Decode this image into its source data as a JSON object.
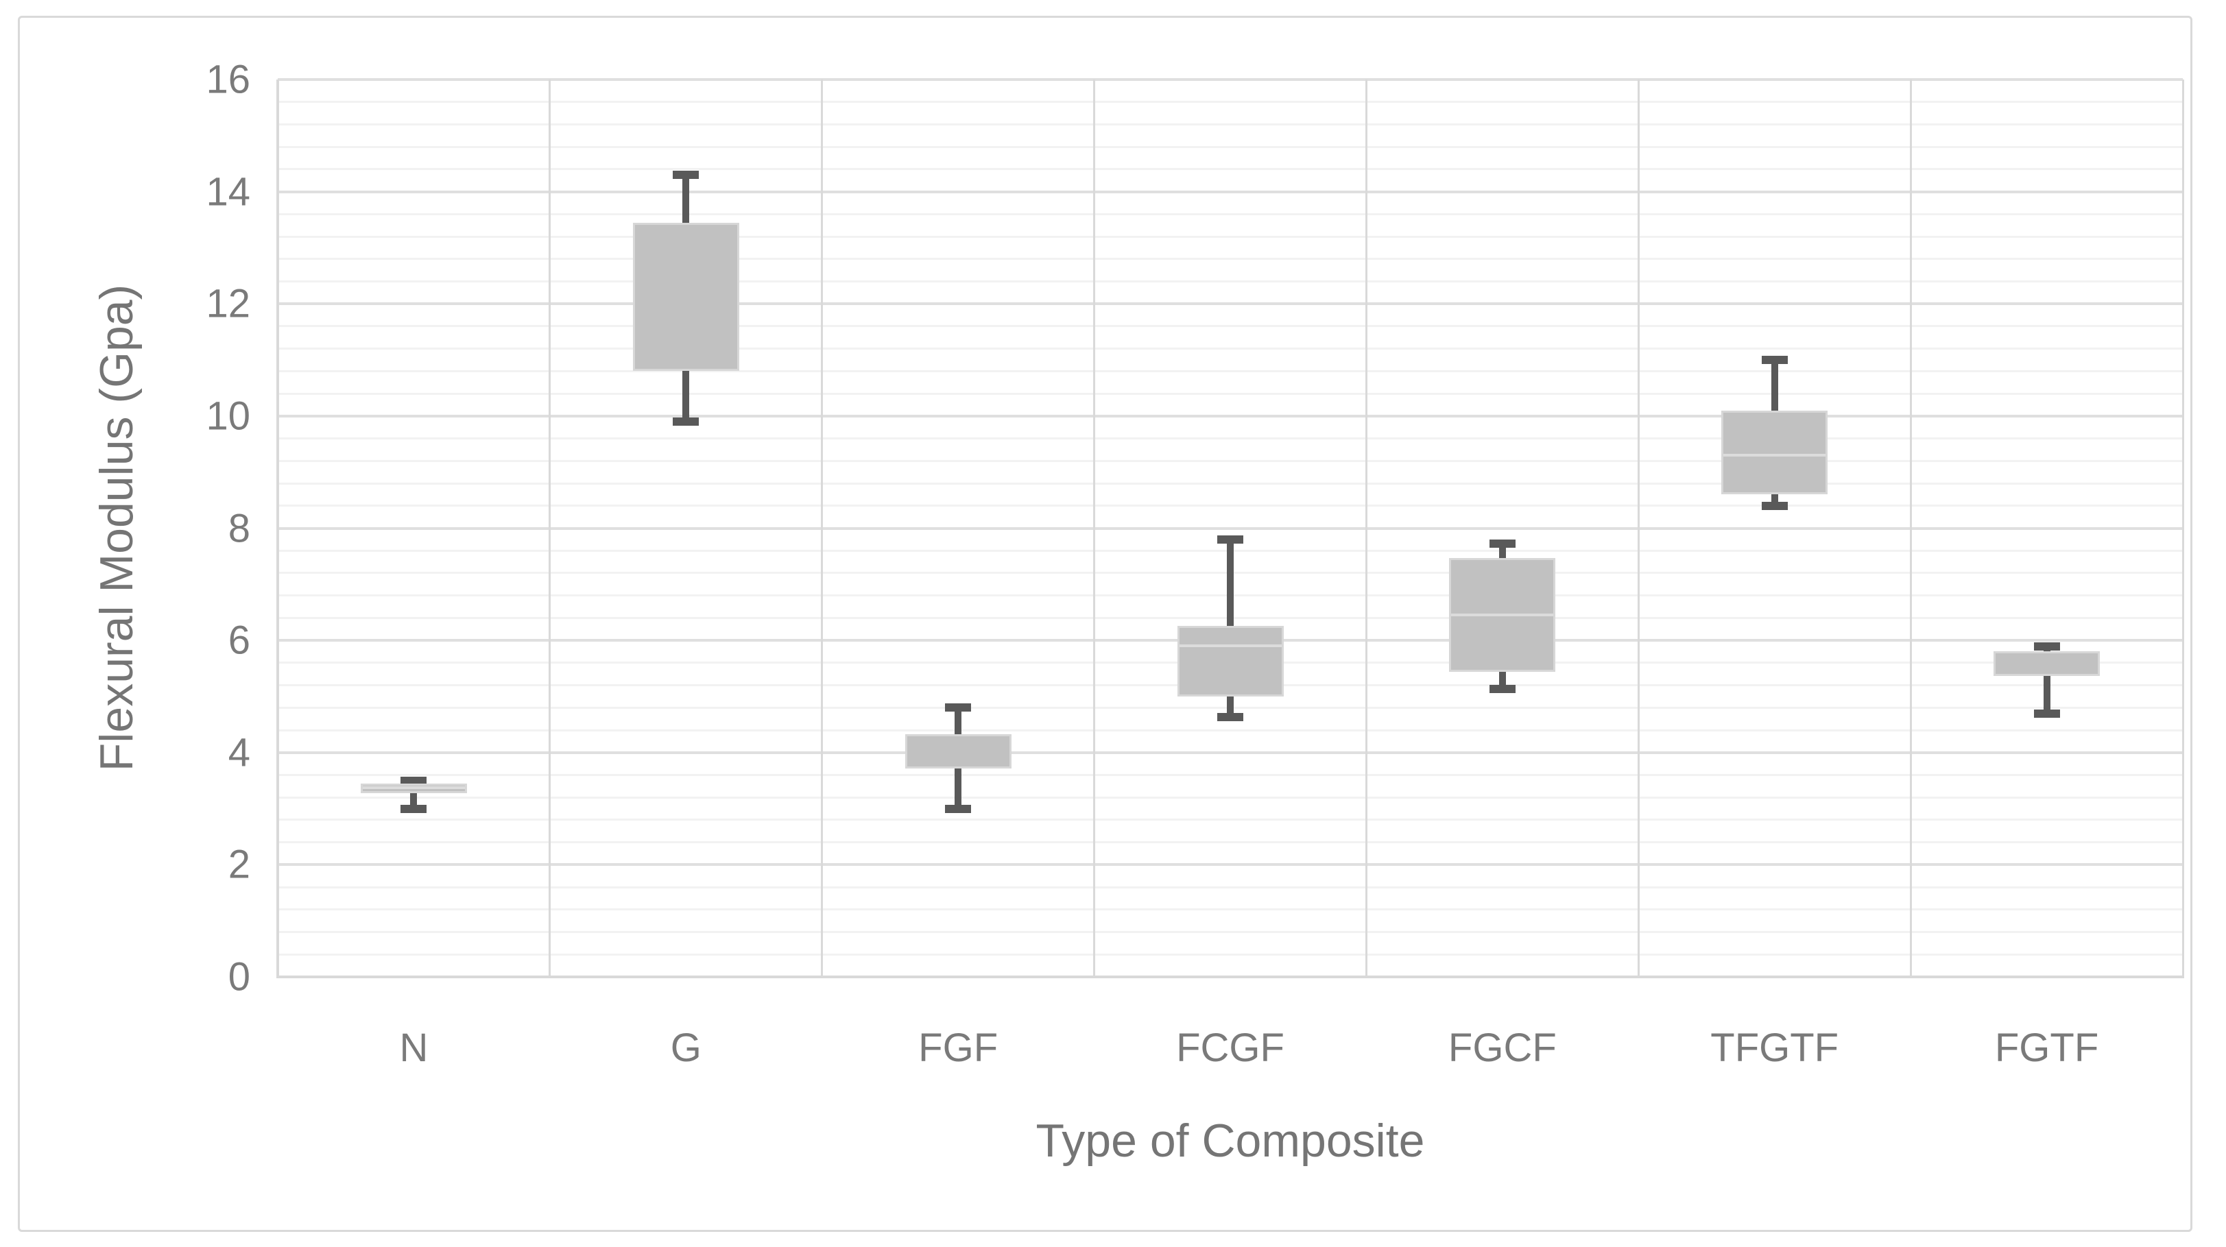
{
  "chart_data": {
    "type": "boxplot",
    "title": "",
    "xlabel": "Type of Composite",
    "ylabel": "Flexural Modulus (Gpa)",
    "ylim": [
      0,
      16
    ],
    "y_major_step": 2,
    "y_minor_step": 0.4,
    "y_tick_labels": [
      "0",
      "2",
      "4",
      "6",
      "8",
      "10",
      "12",
      "14",
      "16"
    ],
    "grid": "on",
    "legend": "none",
    "categories": [
      "N",
      "G",
      "FGF",
      "FCGF",
      "FGCF",
      "TFGTF",
      "FGTF"
    ],
    "boxes": [
      {
        "category": "N",
        "min": 3.0,
        "q1": 3.28,
        "median": 3.37,
        "q3": 3.45,
        "max": 3.5
      },
      {
        "category": "G",
        "min": 9.9,
        "q1": 10.8,
        "median": null,
        "q3": 13.45,
        "max": 14.3
      },
      {
        "category": "FGF",
        "min": 3.0,
        "q1": 3.72,
        "median": null,
        "q3": 4.33,
        "max": 4.8
      },
      {
        "category": "FCGF",
        "min": 4.63,
        "q1": 5.0,
        "median": 5.9,
        "q3": 6.26,
        "max": 7.8
      },
      {
        "category": "FGCF",
        "min": 5.13,
        "q1": 5.44,
        "median": 6.45,
        "q3": 7.47,
        "max": 7.73
      },
      {
        "category": "TFGTF",
        "min": 8.4,
        "q1": 8.6,
        "median": 9.3,
        "q3": 10.1,
        "max": 11.0
      },
      {
        "category": "FGTF",
        "min": 4.69,
        "q1": 5.37,
        "median": null,
        "q3": 5.81,
        "max": 5.89
      }
    ]
  },
  "colors": {
    "background": "#ffffff",
    "frame_border": "#d9d9d9",
    "box_fill": "#c1c1c1",
    "box_border": "#d7d7d7",
    "median": "#dcdcdc",
    "whisker": "#595959",
    "grid_major": "#dfdfdf",
    "grid_minor": "#f2f2f2",
    "grid_vertical": "#d9d9d9",
    "axis_line": "#d9d9d9",
    "text": "#7a7a7a"
  }
}
